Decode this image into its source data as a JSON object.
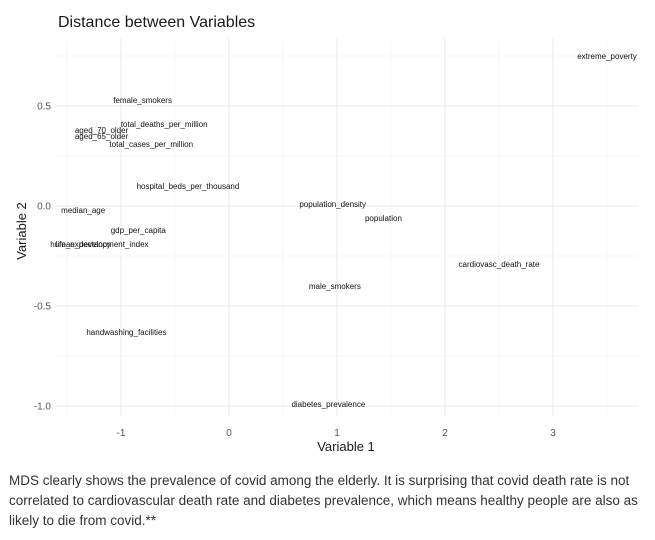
{
  "chart_data": {
    "type": "scatter",
    "title": "Distance between Variables",
    "xlabel": "Variable 1",
    "ylabel": "Variable 2",
    "xlim": [
      -1.5,
      3.8
    ],
    "ylim": [
      -1.1,
      0.77
    ],
    "x_ticks": [
      -1,
      0,
      1,
      2,
      3
    ],
    "y_ticks": [
      0.5,
      0.0,
      -0.5,
      -1.0
    ],
    "y_tick_labels": [
      "0.5",
      "0.0",
      "-0.5",
      "-1.0"
    ],
    "grid": true,
    "legend": "none",
    "points": [
      {
        "label": "extreme_poverty",
        "x": 3.5,
        "y": 0.75
      },
      {
        "label": "female_smokers",
        "x": -0.8,
        "y": 0.53
      },
      {
        "label": "total_deaths_per_million",
        "x": -0.6,
        "y": 0.41
      },
      {
        "label": "aged_70_older",
        "x": -1.18,
        "y": 0.38
      },
      {
        "label": "aged_65_older",
        "x": -1.18,
        "y": 0.35
      },
      {
        "label": "total_cases_per_million",
        "x": -0.72,
        "y": 0.31
      },
      {
        "label": "hospital_beds_per_thousand",
        "x": -0.38,
        "y": 0.1
      },
      {
        "label": "population_density",
        "x": 0.96,
        "y": 0.01
      },
      {
        "label": "median_age",
        "x": -1.35,
        "y": -0.02
      },
      {
        "label": "population",
        "x": 1.43,
        "y": -0.06
      },
      {
        "label": "gdp_per_capita",
        "x": -0.84,
        "y": -0.12
      },
      {
        "label": "life_expectancy",
        "x": -1.35,
        "y": -0.19
      },
      {
        "label": "human_development_index",
        "x": -1.2,
        "y": -0.19
      },
      {
        "label": "cardiovasc_death_rate",
        "x": 2.5,
        "y": -0.29
      },
      {
        "label": "male_smokers",
        "x": 0.98,
        "y": -0.4
      },
      {
        "label": "handwashing_facilities",
        "x": -0.95,
        "y": -0.63
      },
      {
        "label": "diabetes_prevalence",
        "x": 0.92,
        "y": -0.99
      }
    ]
  },
  "caption": "MDS clearly shows the prevalence of covid among the elderly. It is surprising that covid death rate is not correlated to cardiovascular death rate and diabetes prevalence, which means healthy people are also as likely to die from covid.**"
}
